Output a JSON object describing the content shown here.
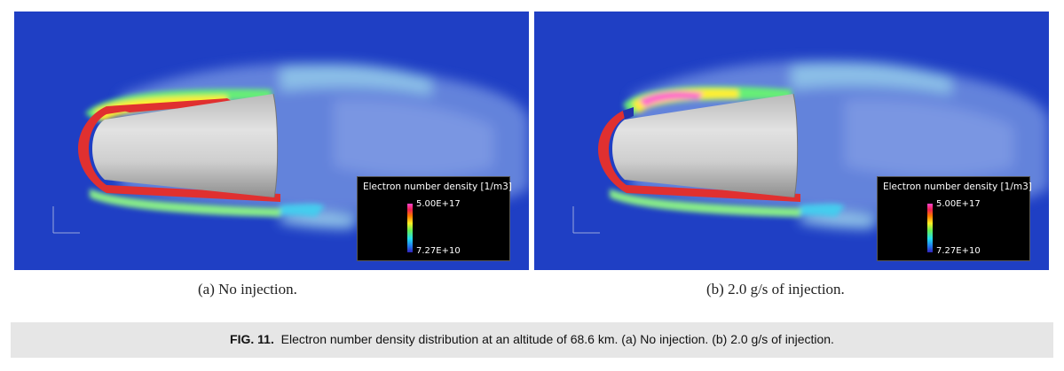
{
  "figure": {
    "label": "FIG. 11.",
    "caption": "Electron number density distribution at an altitude of 68.6 km. (a) No injection. (b) 2.0 g/s of injection."
  },
  "panels": [
    {
      "subcaption": "(a) No injection.",
      "legend": {
        "title": "Electron number density [1/m3]",
        "max": "5.00E+17",
        "min": "7.27E+10"
      }
    },
    {
      "subcaption": "(b) 2.0 g/s of injection.",
      "legend": {
        "title": "Electron number density [1/m3]",
        "max": "5.00E+17",
        "min": "7.27E+10"
      }
    }
  ],
  "colors": {
    "background_field": "#1f3fc4",
    "shock_layer": "#e03030",
    "body": "#c8c8c8",
    "caption_bg": "#e6e6e6"
  }
}
